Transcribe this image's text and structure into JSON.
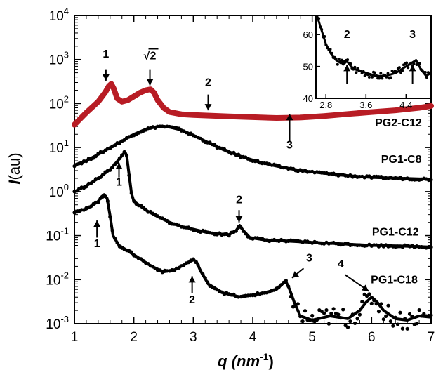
{
  "chart_data": {
    "type": "line",
    "xlabel": "q (nm",
    "xlabel_sup": "-1",
    "xlabel_end": ")",
    "ylabel": "I",
    "ylabel_unit": "(au)",
    "xlim": [
      1,
      7
    ],
    "ylim": [
      0.001,
      10000
    ],
    "yscale": "log",
    "x_ticks": [
      "1",
      "2",
      "3",
      "4",
      "5",
      "6",
      "7"
    ],
    "y_ticks": [
      {
        "base": "10",
        "exp": "-3"
      },
      {
        "base": "10",
        "exp": "-2"
      },
      {
        "base": "10",
        "exp": "-1"
      },
      {
        "base": "10",
        "exp": "0"
      },
      {
        "base": "10",
        "exp": "1"
      },
      {
        "base": "10",
        "exp": "2"
      },
      {
        "base": "10",
        "exp": "3"
      },
      {
        "base": "10",
        "exp": "4"
      }
    ],
    "series": [
      {
        "name": "PG2-C12",
        "color": "#b81c24",
        "style": "thick-line",
        "x": [
          1.0,
          1.2,
          1.4,
          1.52,
          1.58,
          1.62,
          1.66,
          1.72,
          1.8,
          1.9,
          2.0,
          2.1,
          2.2,
          2.28,
          2.34,
          2.4,
          2.5,
          2.6,
          2.8,
          3.0,
          3.3,
          3.6,
          4.0,
          4.4,
          4.8,
          5.2,
          5.6,
          6.0,
          6.4,
          6.8,
          7.0
        ],
        "y": [
          33,
          62,
          110,
          180,
          250,
          280,
          220,
          130,
          110,
          120,
          145,
          175,
          200,
          210,
          175,
          120,
          80,
          64,
          57,
          55,
          53,
          51,
          49,
          47,
          48,
          52,
          58,
          64,
          70,
          80,
          88
        ]
      },
      {
        "name": "PG1-C8",
        "color": "#000000",
        "style": "dots",
        "x": [
          1.0,
          1.2,
          1.4,
          1.6,
          1.8,
          2.0,
          2.2,
          2.4,
          2.5,
          2.6,
          2.8,
          3.0,
          3.2,
          3.5,
          3.8,
          4.1,
          4.4,
          4.8,
          5.2,
          5.6,
          6.0,
          6.5,
          7.0
        ],
        "y": [
          4.0,
          5.0,
          7.0,
          10.0,
          14.0,
          20.0,
          26.0,
          30.0,
          30.0,
          29.0,
          25.0,
          19.0,
          14.0,
          9.0,
          6.3,
          4.7,
          3.8,
          3.0,
          2.6,
          2.3,
          2.1,
          2.0,
          1.9
        ]
      },
      {
        "name": "PG1-C12",
        "color": "#000000",
        "style": "dots",
        "x": [
          1.0,
          1.2,
          1.4,
          1.6,
          1.7,
          1.8,
          1.85,
          1.88,
          1.92,
          1.96,
          2.0,
          2.2,
          2.4,
          2.6,
          2.8,
          3.0,
          3.2,
          3.4,
          3.6,
          3.72,
          3.78,
          3.84,
          3.95,
          4.2,
          4.6,
          5.0,
          5.5,
          6.0,
          6.5,
          7.0
        ],
        "y": [
          1.0,
          1.35,
          2.0,
          3.2,
          4.5,
          6.5,
          8.0,
          6.5,
          2.4,
          0.9,
          0.6,
          0.38,
          0.27,
          0.2,
          0.16,
          0.14,
          0.12,
          0.11,
          0.105,
          0.13,
          0.17,
          0.13,
          0.09,
          0.08,
          0.075,
          0.07,
          0.065,
          0.06,
          0.058,
          0.055
        ]
      },
      {
        "name": "PG1-C18",
        "color": "#000000",
        "style": "dots",
        "x": [
          1.0,
          1.2,
          1.3,
          1.4,
          1.45,
          1.5,
          1.55,
          1.6,
          1.65,
          1.75,
          1.9,
          2.1,
          2.3,
          2.5,
          2.7,
          2.9,
          3.0,
          3.05,
          3.12,
          3.25,
          3.5,
          3.8,
          4.0,
          4.2,
          4.4,
          4.5,
          4.56,
          4.62,
          4.7,
          4.8,
          5.0,
          5.3,
          5.6,
          5.8,
          5.9,
          6.0,
          6.05,
          6.1,
          6.2,
          6.4,
          6.6,
          6.8,
          7.0
        ],
        "y": [
          0.35,
          0.4,
          0.48,
          0.6,
          0.75,
          0.85,
          0.7,
          0.28,
          0.1,
          0.06,
          0.045,
          0.03,
          0.02,
          0.015,
          0.017,
          0.024,
          0.028,
          0.026,
          0.016,
          0.008,
          0.005,
          0.004,
          0.0045,
          0.005,
          0.006,
          0.008,
          0.009,
          0.006,
          0.003,
          0.0015,
          0.0012,
          0.0015,
          0.0013,
          0.002,
          0.003,
          0.004,
          0.0035,
          0.003,
          0.002,
          0.0013,
          0.0012,
          0.0015,
          0.0014
        ]
      }
    ],
    "series_labels": [
      {
        "text": "PG2-C12",
        "x": 6.45,
        "y": 30
      },
      {
        "text": "PG1-C8",
        "x": 6.5,
        "y": 4.5
      },
      {
        "text": "PG1-C12",
        "x": 6.4,
        "y": 0.1
      },
      {
        "text": "PG1-C18",
        "x": 6.38,
        "y": 0.0082
      }
    ],
    "annotations": [
      {
        "text": "1",
        "x": 1.53,
        "y": 1100,
        "arrow_from_y": 600,
        "arrow_to_y": 330,
        "dir": "down"
      },
      {
        "text": "√2",
        "x": 2.27,
        "y": 1000,
        "arrow_from_y": 600,
        "arrow_to_y": 260,
        "dir": "down",
        "overline": true
      },
      {
        "text": "2",
        "x": 3.25,
        "y": 250,
        "arrow_from_y": 160,
        "arrow_to_y": 70,
        "dir": "down"
      },
      {
        "text": "3",
        "x": 4.62,
        "y": 9.5,
        "arrow_from_y": 14,
        "arrow_to_y": 58,
        "dir": "up"
      },
      {
        "text": "1",
        "x": 1.75,
        "y": 1.35,
        "arrow_from_y": 2.1,
        "arrow_to_y": 4.5,
        "dir": "up"
      },
      {
        "text": "2",
        "x": 3.77,
        "y": 0.54,
        "arrow_from_y": 0.38,
        "arrow_to_y": 0.2,
        "dir": "down"
      },
      {
        "text": "1",
        "x": 1.38,
        "y": 0.055,
        "arrow_from_y": 0.09,
        "arrow_to_y": 0.22,
        "dir": "up"
      },
      {
        "text": "2",
        "x": 2.98,
        "y": 0.0029,
        "arrow_from_y": 0.005,
        "arrow_to_y": 0.012,
        "dir": "up"
      },
      {
        "text": "3",
        "x": 4.95,
        "y": 0.026,
        "arrow_from_y": 0.018,
        "arrow_to_y": 0.011,
        "dir": "diag-left",
        "arrow_to_x": 4.66
      },
      {
        "text": "4",
        "x": 5.48,
        "y": 0.019,
        "arrow_from_y": 0.013,
        "arrow_to_y": 0.0055,
        "dir": "diag-right",
        "arrow_to_x": 5.95
      }
    ],
    "inset": {
      "xlim": [
        2.6,
        4.9
      ],
      "ylim": [
        40,
        66
      ],
      "x_ticks": [
        "2.8",
        "3.6",
        "4.4"
      ],
      "y_ticks": [
        "40",
        "50",
        "60"
      ],
      "x": [
        2.6,
        2.7,
        2.8,
        2.9,
        3.0,
        3.1,
        3.2,
        3.3,
        3.4,
        3.6,
        3.8,
        4.0,
        4.2,
        4.3,
        4.4,
        4.5,
        4.6,
        4.7,
        4.8,
        4.9
      ],
      "y": [
        67,
        62,
        57,
        54,
        52,
        51,
        52,
        50,
        49,
        48,
        47,
        47,
        48,
        49,
        50,
        51,
        52,
        49,
        47,
        48
      ],
      "annotations": [
        {
          "text": "2",
          "x": 3.22,
          "y": 59,
          "arrow_from_y": 50.5,
          "arrow_to_y": 44.5,
          "dir": "up"
        },
        {
          "text": "3",
          "x": 4.53,
          "y": 59,
          "arrow_from_y": 50.5,
          "arrow_to_y": 44.5,
          "dir": "up"
        }
      ]
    }
  }
}
